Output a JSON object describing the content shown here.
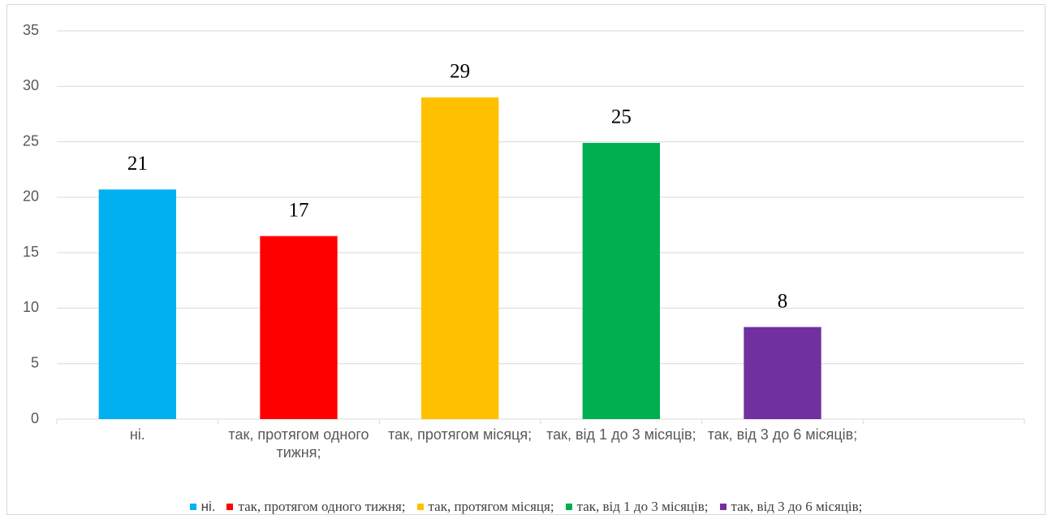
{
  "chart_data": {
    "type": "bar",
    "categories": [
      "ні.",
      "так, протягом одного тижня;",
      "так, протягом місяця;",
      "так, від 1 до 3 місяців;",
      "так, від 3 до 6 місяців;",
      null
    ],
    "values": [
      20.7,
      16.5,
      29,
      24.9,
      8.3,
      null
    ],
    "value_labels": [
      "21",
      "17",
      "29",
      "25",
      "8",
      null
    ],
    "colors": [
      "#00b0f0",
      "#ff0000",
      "#ffc000",
      "#00b050",
      "#7030a0"
    ],
    "ylim": [
      0,
      35
    ],
    "yticks": [
      0,
      5,
      10,
      15,
      20,
      25,
      30,
      35
    ],
    "grid": true,
    "legend": "bottom"
  }
}
